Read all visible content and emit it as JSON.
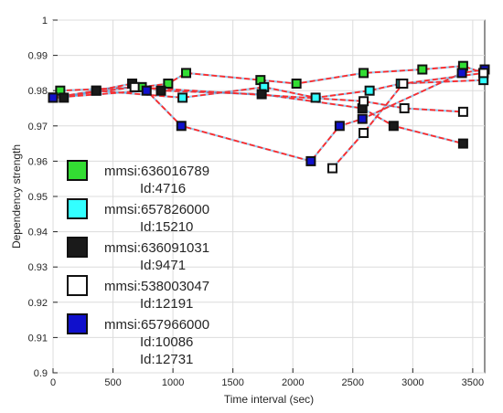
{
  "chart_data": {
    "type": "line",
    "xlabel": "Time interval (sec)",
    "ylabel": "Dependency strength",
    "xlim": [
      0,
      3600
    ],
    "ylim": [
      0.9,
      1.0
    ],
    "x_ticks": [
      0,
      500,
      1000,
      1500,
      2000,
      2500,
      3000,
      3500
    ],
    "y_ticks": [
      0.9,
      0.91,
      0.92,
      0.93,
      0.94,
      0.95,
      0.96,
      0.97,
      0.98,
      0.99,
      1
    ],
    "y_tick_labels": [
      "0.9",
      "0.91",
      "0.92",
      "0.93",
      "0.94",
      "0.95",
      "0.96",
      "0.97",
      "0.98",
      "0.99",
      "1"
    ],
    "grid": true,
    "legend_position": "left",
    "line_color": "#ff2a2a",
    "series": [
      {
        "legend_lines": [
          "mmsi:636016789",
          "Id:4716"
        ],
        "marker_color": "#33dd33",
        "points": [
          [
            0,
            0.978
          ],
          [
            60,
            0.98
          ],
          [
            740,
            0.981
          ],
          [
            960,
            0.982
          ],
          [
            1110,
            0.985
          ],
          [
            1730,
            0.983
          ],
          [
            2030,
            0.982
          ],
          [
            2590,
            0.985
          ],
          [
            3080,
            0.986
          ],
          [
            3420,
            0.987
          ],
          [
            3590,
            0.985
          ]
        ]
      },
      {
        "legend_lines": [
          "mmsi:657826000",
          "Id:15210"
        ],
        "marker_color": "#33ffff",
        "points": [
          [
            0,
            0.978
          ],
          [
            360,
            0.98
          ],
          [
            1080,
            0.978
          ],
          [
            1760,
            0.981
          ],
          [
            2190,
            0.978
          ],
          [
            2640,
            0.98
          ],
          [
            2900,
            0.982
          ],
          [
            3590,
            0.983
          ]
        ]
      },
      {
        "legend_lines": [
          "mmsi:636091031",
          "Id:9471"
        ],
        "marker_color": "#1a1a1a",
        "points": [
          [
            0,
            0.978
          ],
          [
            90,
            0.978
          ],
          [
            360,
            0.98
          ],
          [
            660,
            0.982
          ],
          [
            900,
            0.98
          ],
          [
            1740,
            0.979
          ],
          [
            2580,
            0.975
          ],
          [
            2840,
            0.97
          ],
          [
            3420,
            0.965
          ]
        ]
      },
      {
        "legend_lines": [
          "mmsi:538003047",
          "Id:12191"
        ],
        "marker_color": "#ffffff",
        "points": [
          [
            0,
            0.978
          ],
          [
            680,
            0.981
          ],
          [
            2590,
            0.977
          ],
          [
            2930,
            0.975
          ],
          [
            3420,
            0.974
          ]
        ]
      },
      {
        "legend_lines": [
          "mmsi:657966000",
          "Id:10086",
          "Id:12731"
        ],
        "marker_color": "#1010cc",
        "points": [
          [
            0,
            0.978
          ],
          [
            780,
            0.98
          ],
          [
            1070,
            0.97
          ],
          [
            2150,
            0.96
          ],
          [
            2390,
            0.97
          ],
          [
            2580,
            0.972
          ],
          [
            3410,
            0.985
          ],
          [
            3600,
            0.986
          ]
        ]
      }
    ],
    "extra_series": [
      {
        "marker_color": "#ffffff",
        "points": [
          [
            2330,
            0.958
          ],
          [
            2590,
            0.968
          ],
          [
            2920,
            0.982
          ],
          [
            3590,
            0.985
          ]
        ]
      }
    ]
  }
}
